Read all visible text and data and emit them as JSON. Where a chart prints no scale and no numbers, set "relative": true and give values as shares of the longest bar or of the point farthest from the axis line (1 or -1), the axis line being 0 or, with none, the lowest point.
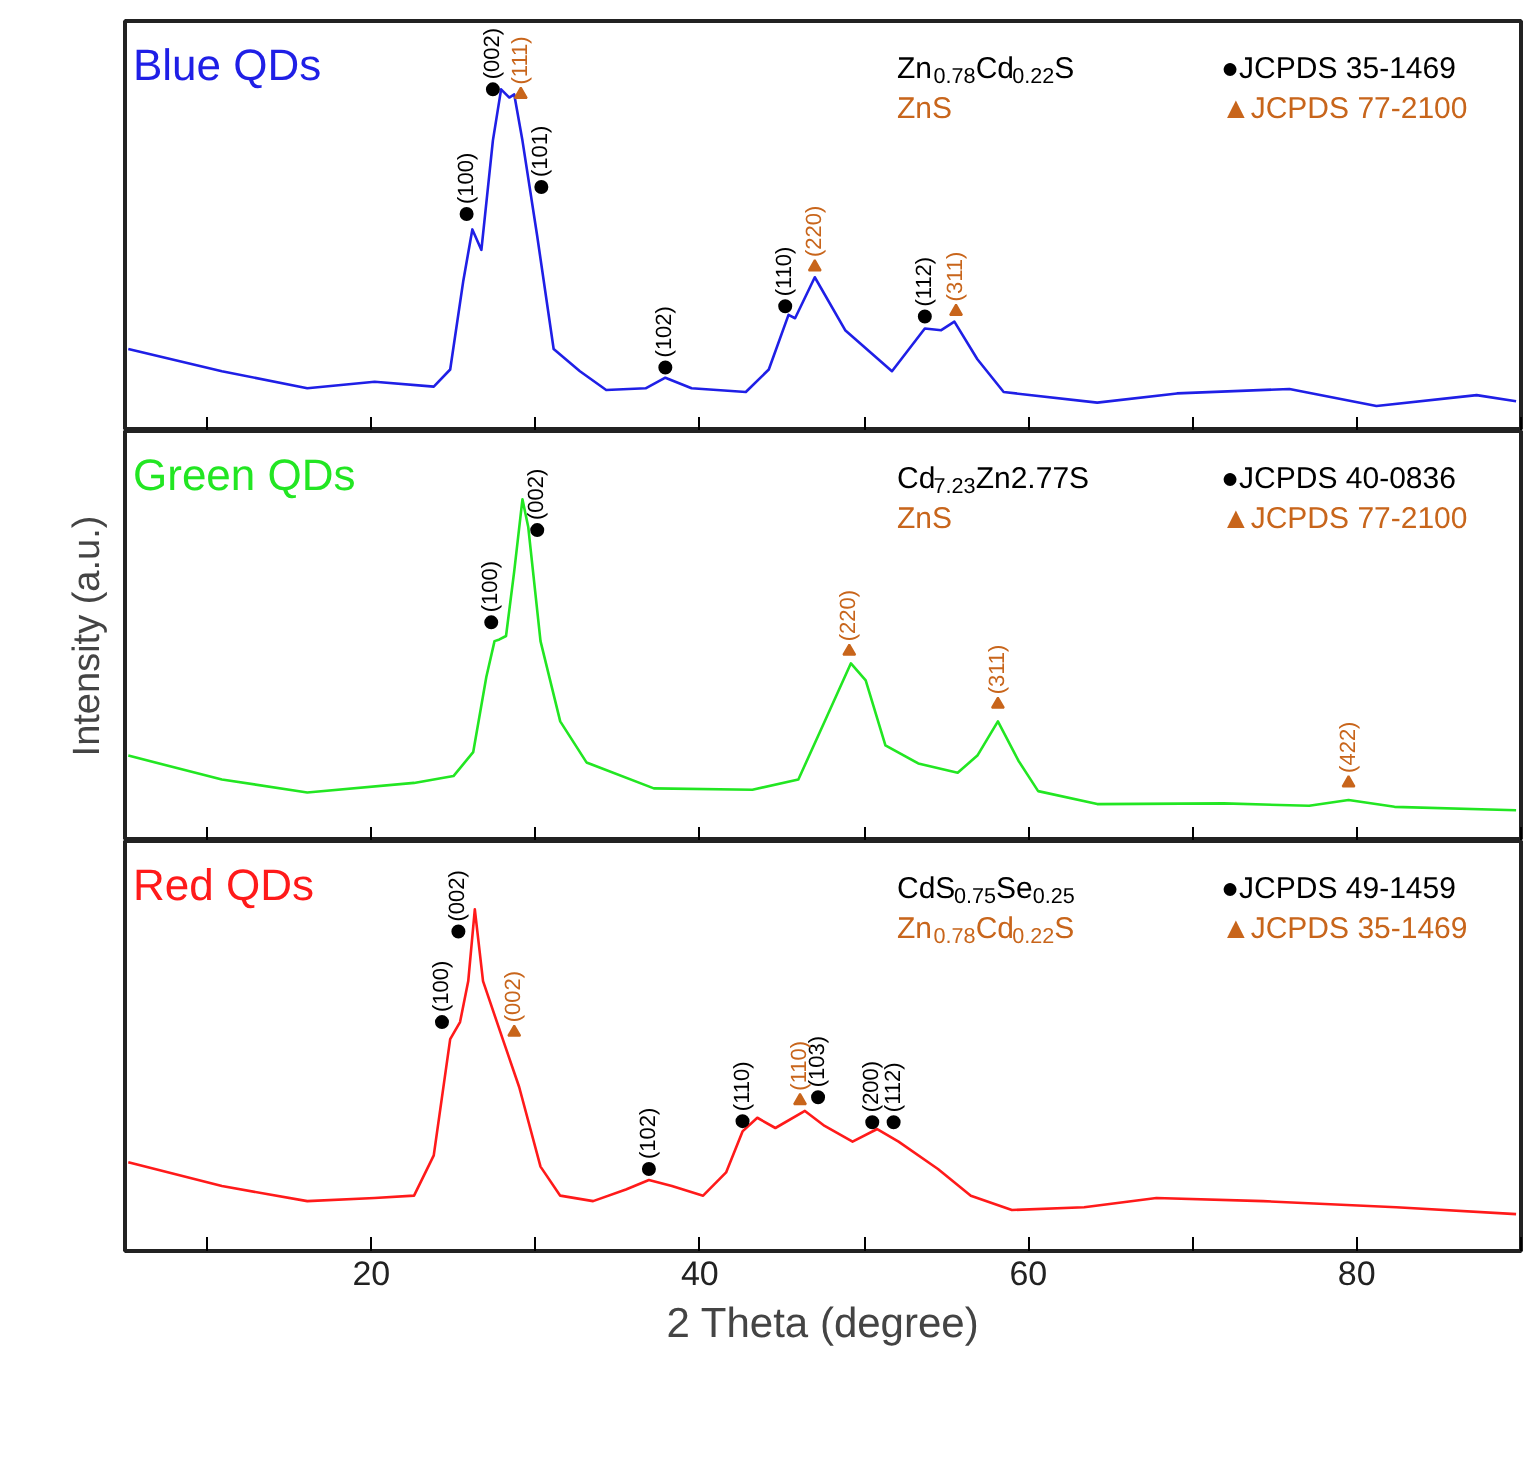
{
  "chart_data": [
    {
      "type": "line",
      "title": "Blue QDs",
      "relative": true,
      "xlim": [
        5,
        90
      ],
      "xticks": [
        {
          "value": 10,
          "label": null
        },
        20,
        {
          "value": 30,
          "label": null
        },
        40,
        {
          "value": 50,
          "label": null
        },
        60,
        {
          "value": 70,
          "label": null
        },
        80,
        {
          "value": 90,
          "label": null
        }
      ],
      "tick_labels": false,
      "line_style": "solid",
      "series": [
        {
          "color": "#1f1fe6",
          "x": [
            5.2,
            10.9,
            16.1,
            20.2,
            23.8,
            24.8,
            25.6,
            26.15,
            26.7,
            27.4,
            27.9,
            28.4,
            28.7,
            29.2,
            30.1,
            31.1,
            32.7,
            34.3,
            36.7,
            37.9,
            39.5,
            42.8,
            44.2,
            45.4,
            45.8,
            47.0,
            48.85,
            51.7,
            53.7,
            54.7,
            55.5,
            56.9,
            58.5,
            64.2,
            69.05,
            75.9,
            81.2,
            87.3,
            89.7
          ],
          "values": [
            0.24,
            0.175,
            0.125,
            0.144,
            0.13,
            0.18,
            0.44,
            0.59,
            0.53,
            0.85,
            1.0,
            0.976,
            0.985,
            0.85,
            0.57,
            0.24,
            0.175,
            0.12,
            0.125,
            0.156,
            0.125,
            0.114,
            0.18,
            0.34,
            0.33,
            0.45,
            0.295,
            0.175,
            0.3,
            0.295,
            0.32,
            0.21,
            0.114,
            0.083,
            0.11,
            0.123,
            0.073,
            0.105,
            0.087
          ]
        },
        {
          "type": "scatter",
          "marker": "circle",
          "name": "Zn$_{0.78}$Cd$_{0.22}$S ●JCPDS 35-1469",
          "color": "#000000",
          "x": [
            25.8,
            27.4,
            30.35,
            37.9,
            45.2,
            53.7
          ],
          "values": [
            0.635,
            1.0,
            0.714,
            0.186,
            0.365,
            0.335
          ]
        },
        {
          "type": "scatter",
          "marker": "triangle",
          "name": "ZnS ▲JCPDS 77-2100",
          "color": "#c8651b",
          "x": [
            29.1,
            47.0,
            55.6
          ],
          "values": [
            0.985,
            0.48,
            0.35
          ]
        }
      ],
      "annotations": [
        {
          "text": "(100)",
          "x": 25.8,
          "y": 0.635
        },
        {
          "text": "(002)",
          "x": 27.4,
          "y": 1.0
        },
        {
          "text": "(101)",
          "x": 30.35,
          "y": 0.714
        },
        {
          "text": "(102)",
          "x": 37.9,
          "y": 0.186
        },
        {
          "text": "(110)",
          "x": 45.2,
          "y": 0.365
        },
        {
          "text": "(112)",
          "x": 53.7,
          "y": 0.335
        },
        {
          "text": "(111)",
          "x": 29.1,
          "y": 0.985
        },
        {
          "text": "(220)",
          "x": 47.0,
          "y": 0.48
        },
        {
          "text": "(311)",
          "x": 55.6,
          "y": 0.35
        }
      ]
    },
    {
      "type": "line",
      "title": "Green QDs",
      "relative": true,
      "xlim": [
        5,
        90
      ],
      "xticks": [
        {
          "value": 10,
          "label": null
        },
        20,
        {
          "value": 30,
          "label": null
        },
        40,
        {
          "value": 50,
          "label": null
        },
        60,
        {
          "value": 70,
          "label": null
        },
        80,
        {
          "value": 90,
          "label": null
        }
      ],
      "tick_labels": false,
      "line_style": "solid",
      "ylabel": "Intensity (a.u.)",
      "series": [
        {
          "color": "#22e622",
          "x": [
            5.2,
            10.9,
            16.1,
            22.6,
            25.0,
            26.2,
            27.0,
            27.5,
            27.8,
            28.2,
            28.7,
            29.2,
            29.55,
            30.3,
            31.5,
            33.1,
            37.2,
            43.2,
            46.0,
            47.6,
            49.2,
            50.1,
            51.3,
            53.3,
            55.7,
            56.9,
            58.15,
            59.4,
            60.6,
            64.2,
            71.9,
            77.1,
            79.5,
            82.3,
            89.7
          ],
          "values": [
            0.25,
            0.18,
            0.142,
            0.17,
            0.19,
            0.26,
            0.48,
            0.585,
            0.59,
            0.6,
            0.79,
            1.0,
            0.92,
            0.585,
            0.35,
            0.23,
            0.154,
            0.15,
            0.18,
            0.35,
            0.52,
            0.47,
            0.28,
            0.227,
            0.2,
            0.25,
            0.35,
            0.235,
            0.146,
            0.108,
            0.11,
            0.103,
            0.12,
            0.1,
            0.09
          ]
        },
        {
          "type": "scatter",
          "marker": "circle",
          "name": "Cd$_{7.23}$Zn2.77S ●JCPDS 40-0836",
          "color": "#000000",
          "x": [
            27.3,
            30.1
          ],
          "values": [
            0.64,
            0.91
          ]
        },
        {
          "type": "scatter",
          "marker": "triangle",
          "name": "ZnS ▲JCPDS 77-2100",
          "color": "#c8651b",
          "x": [
            49.1,
            58.15,
            79.5
          ],
          "values": [
            0.555,
            0.4,
            0.17
          ]
        }
      ],
      "annotations": [
        {
          "text": "(100)",
          "x": 27.3,
          "y": 0.64
        },
        {
          "text": "(002)",
          "x": 30.1,
          "y": 0.91
        },
        {
          "text": "(220)",
          "x": 49.1,
          "y": 0.555
        },
        {
          "text": "(311)",
          "x": 58.15,
          "y": 0.4
        },
        {
          "text": "(422)",
          "x": 79.5,
          "y": 0.17
        }
      ]
    },
    {
      "type": "line",
      "title": "Red QDs",
      "relative": true,
      "xlim": [
        5,
        90
      ],
      "xticks": [
        {
          "value": 10,
          "label": null
        },
        20,
        {
          "value": 30,
          "label": null
        },
        40,
        {
          "value": 50,
          "label": null
        },
        60,
        {
          "value": 70,
          "label": null
        },
        80,
        {
          "value": 90,
          "label": null
        }
      ],
      "tick_labels": "x",
      "line_style": "solid",
      "xlabel": "2 Theta (degree)",
      "series": [
        {
          "color": "#ff1a1a",
          "x": [
            5.2,
            10.9,
            16.1,
            20.2,
            22.6,
            23.8,
            24.8,
            25.4,
            25.9,
            26.3,
            26.8,
            28.0,
            29.0,
            30.3,
            31.5,
            33.5,
            35.5,
            36.9,
            38.3,
            40.2,
            41.6,
            42.6,
            43.5,
            44.6,
            46.4,
            47.6,
            49.3,
            50.8,
            52.1,
            54.5,
            56.5,
            59.0,
            63.4,
            67.8,
            74.3,
            82.4,
            89.7
          ],
          "values": [
            0.26,
            0.19,
            0.146,
            0.155,
            0.162,
            0.28,
            0.62,
            0.67,
            0.79,
            1.0,
            0.79,
            0.62,
            0.48,
            0.247,
            0.162,
            0.146,
            0.18,
            0.208,
            0.19,
            0.162,
            0.23,
            0.35,
            0.39,
            0.36,
            0.41,
            0.366,
            0.32,
            0.357,
            0.32,
            0.24,
            0.162,
            0.12,
            0.128,
            0.155,
            0.146,
            0.128,
            0.108
          ]
        },
        {
          "type": "scatter",
          "marker": "circle",
          "name": "CdS$_{0.75}$Se$_{0.25}$ ●JCPDS 49-1459",
          "color": "#000000",
          "x": [
            24.3,
            25.3,
            36.9,
            42.6,
            47.2,
            50.5,
            51.8
          ],
          "values": [
            0.67,
            0.935,
            0.24,
            0.38,
            0.45,
            0.377,
            0.377
          ]
        },
        {
          "type": "scatter",
          "marker": "triangle",
          "name": "Zn$_{0.78}$Cd$_{0.22}$S ▲JCPDS 35-1469",
          "color": "#c8651b",
          "x": [
            28.7,
            46.1
          ],
          "values": [
            0.64,
            0.44
          ]
        }
      ],
      "annotations": [
        {
          "text": "(100)",
          "x": 24.3,
          "y": 0.67
        },
        {
          "text": "(002)",
          "x": 25.3,
          "y": 0.935
        },
        {
          "text": "(102)",
          "x": 36.9,
          "y": 0.24
        },
        {
          "text": "(110)",
          "x": 42.6,
          "y": 0.38
        },
        {
          "text": "(103)",
          "x": 47.2,
          "y": 0.45
        },
        {
          "text": "(200)",
          "x": 50.5,
          "y": 0.377
        },
        {
          "text": "(112)",
          "x": 51.8,
          "y": 0.377
        },
        {
          "text": "(002)",
          "x": 28.7,
          "y": 0.64
        },
        {
          "text": "(110)",
          "x": 46.1,
          "y": 0.44
        }
      ]
    }
  ]
}
